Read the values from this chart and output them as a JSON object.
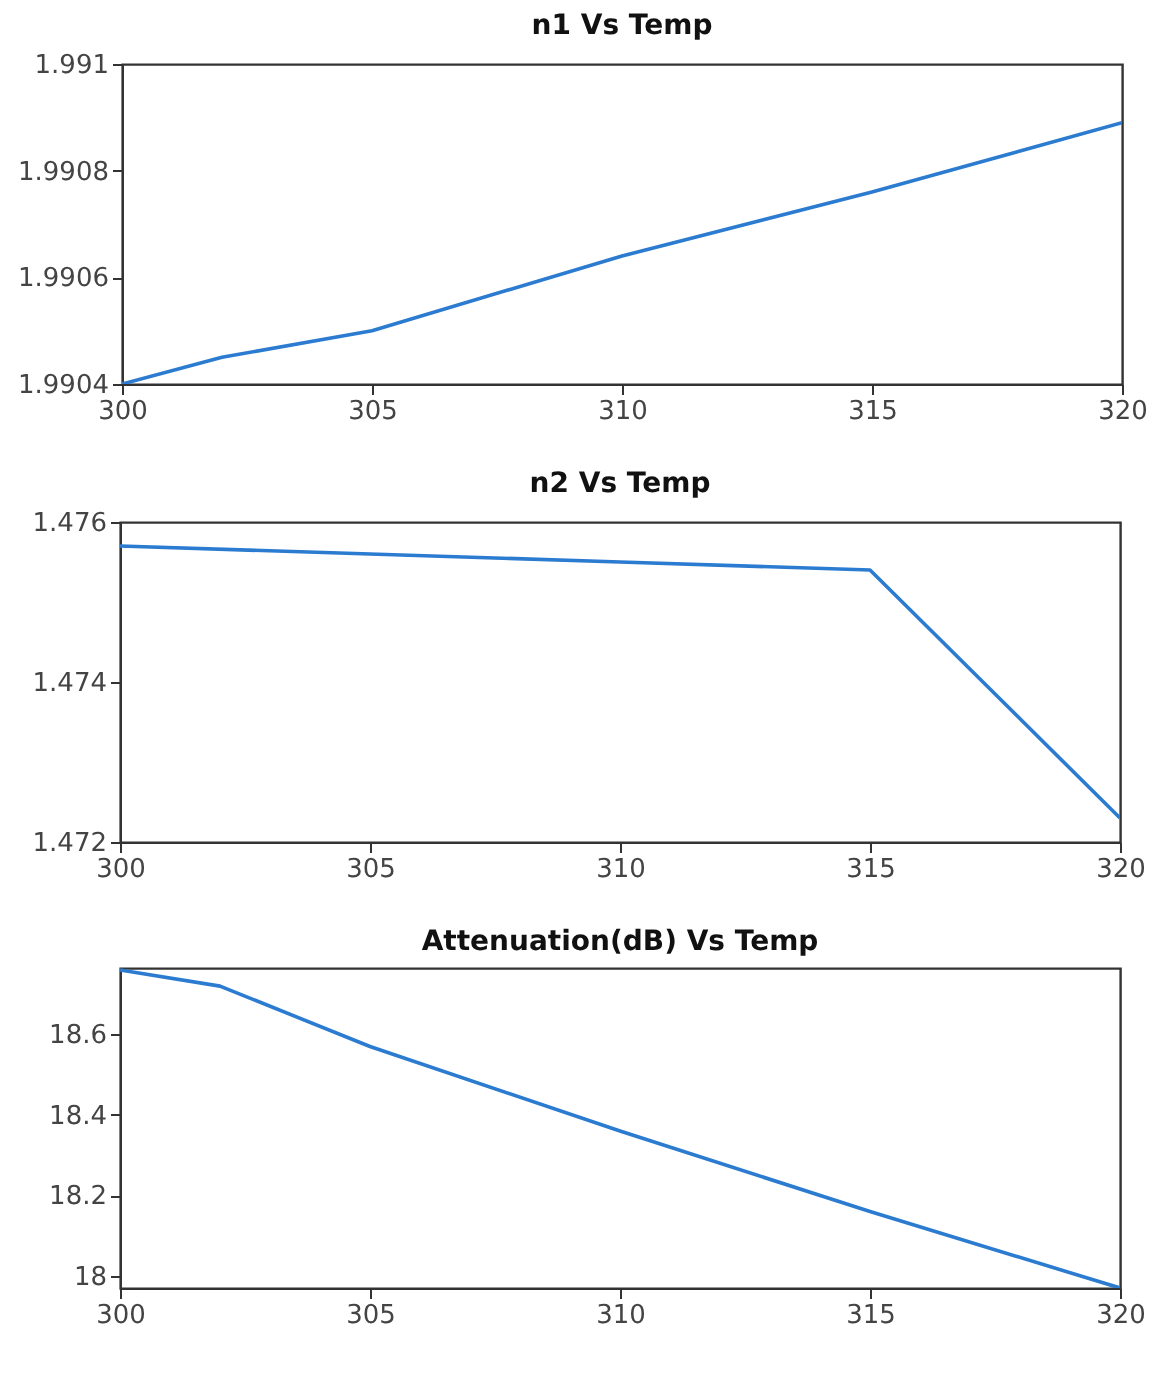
{
  "chart_data": [
    {
      "type": "line",
      "title": "n1 Vs Temp",
      "x": [
        300,
        302,
        305,
        310,
        315,
        320
      ],
      "values": [
        1.9904,
        1.99045,
        1.9905,
        1.99064,
        1.99076,
        1.99089
      ],
      "color": "#2b7bd0",
      "xlim": [
        300,
        320
      ],
      "xticks": [
        300,
        305,
        310,
        315,
        320
      ],
      "ylim": [
        1.9904,
        1.991
      ],
      "yticks": [
        1.9904,
        1.9906,
        1.9908,
        1.991
      ]
    },
    {
      "type": "line",
      "title": "n2 Vs Temp",
      "x": [
        300,
        305,
        310,
        315,
        320
      ],
      "values": [
        1.4757,
        1.4756,
        1.4755,
        1.4754,
        1.4723
      ],
      "color": "#2b7bd0",
      "xlim": [
        300,
        320
      ],
      "xticks": [
        300,
        305,
        310,
        315,
        320
      ],
      "ylim": [
        1.472,
        1.476
      ],
      "yticks": [
        1.472,
        1.474,
        1.476
      ]
    },
    {
      "type": "line",
      "title": "Attenuation(dB) Vs Temp",
      "x": [
        300,
        302,
        305,
        310,
        315,
        320
      ],
      "values": [
        18.76,
        18.72,
        18.57,
        18.36,
        18.16,
        17.97
      ],
      "color": "#2b7bd0",
      "xlim": [
        300,
        320
      ],
      "xticks": [
        300,
        305,
        310,
        315,
        320
      ],
      "ylim": [
        17.97,
        18.765
      ],
      "yticks": [
        18,
        18.2,
        18.4,
        18.6
      ]
    }
  ]
}
